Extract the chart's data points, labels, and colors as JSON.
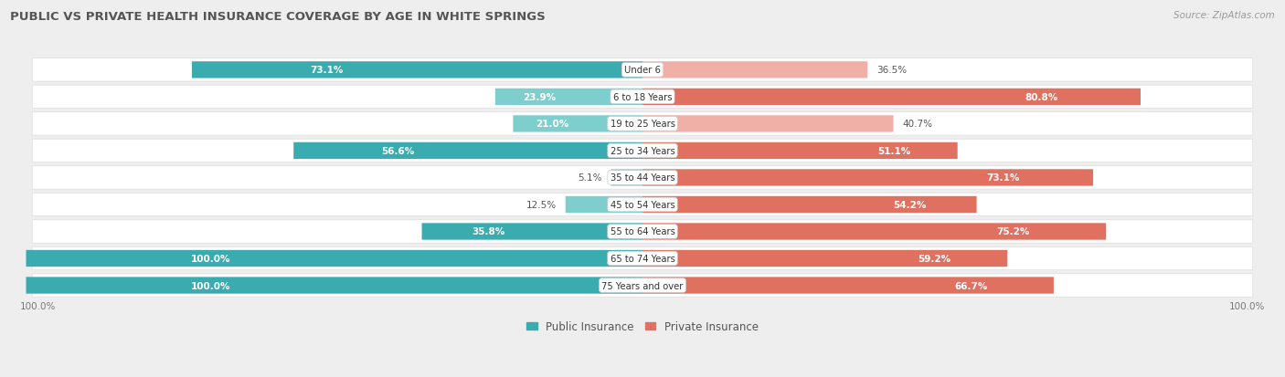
{
  "title": "PUBLIC VS PRIVATE HEALTH INSURANCE COVERAGE BY AGE IN WHITE SPRINGS",
  "source": "Source: ZipAtlas.com",
  "categories": [
    "Under 6",
    "6 to 18 Years",
    "19 to 25 Years",
    "25 to 34 Years",
    "35 to 44 Years",
    "45 to 54 Years",
    "55 to 64 Years",
    "65 to 74 Years",
    "75 Years and over"
  ],
  "public_values": [
    73.1,
    23.9,
    21.0,
    56.6,
    5.1,
    12.5,
    35.8,
    100.0,
    100.0
  ],
  "private_values": [
    36.5,
    80.8,
    40.7,
    51.1,
    73.1,
    54.2,
    75.2,
    59.2,
    66.7
  ],
  "public_color_dark": "#3AACB0",
  "public_color_light": "#7ECECE",
  "private_color_dark": "#E07060",
  "private_color_light": "#F0B0A8",
  "bg_color": "#EEEEEE",
  "row_bg_color": "#FAFAFA",
  "title_color": "#555555",
  "source_color": "#999999",
  "label_dark": "#555555",
  "max_value": 100.0,
  "bar_height": 0.62,
  "legend_public": "Public Insurance",
  "legend_private": "Private Insurance"
}
